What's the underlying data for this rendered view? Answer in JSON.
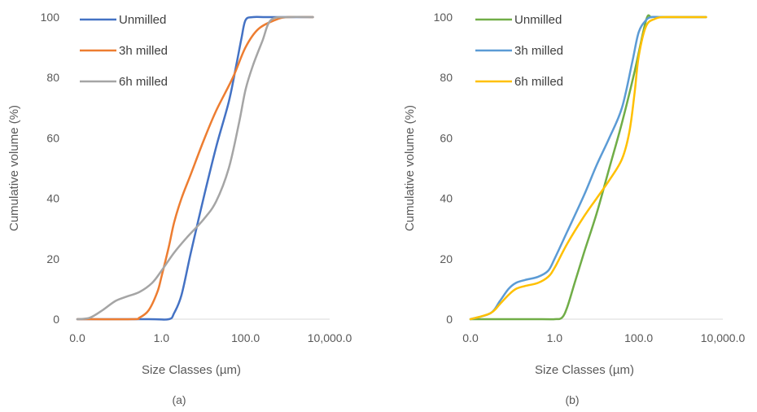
{
  "chart_data": [
    {
      "type": "line",
      "panel_label": "(a)",
      "xlabel": "Size Classes (µm)",
      "ylabel": "Cumulative volume (%)",
      "xscale": "log",
      "xlim": [
        0.01,
        10000
      ],
      "ylim": [
        0,
        100
      ],
      "xticks": [
        {
          "value": 0.01,
          "label": "0.0"
        },
        {
          "value": 1,
          "label": "1.0"
        },
        {
          "value": 100,
          "label": "100.0"
        },
        {
          "value": 10000,
          "label": "10,000.0"
        }
      ],
      "yticks": [
        0,
        20,
        40,
        60,
        80,
        100
      ],
      "grid": false,
      "legend": "top-left",
      "series": [
        {
          "name": "Unmilled",
          "color": "#4472C4",
          "x": [
            0.01,
            0.5,
            1.5,
            2,
            3,
            5,
            10,
            20,
            40,
            60,
            80,
            100,
            150,
            300,
            1000,
            4000
          ],
          "y": [
            0,
            0,
            0,
            2,
            8,
            22,
            40,
            57,
            72,
            84,
            93,
            99,
            100,
            100,
            100,
            100
          ]
        },
        {
          "name": "3h milled",
          "color": "#ED7D31",
          "x": [
            0.01,
            0.2,
            0.3,
            0.5,
            0.8,
            1,
            1.5,
            2,
            3,
            5,
            10,
            20,
            50,
            100,
            200,
            500,
            1000,
            4000
          ],
          "y": [
            0,
            0,
            0.5,
            3,
            9,
            14,
            24,
            32,
            40,
            48,
            59,
            69,
            80,
            90,
            96,
            99,
            100,
            100
          ]
        },
        {
          "name": "6h milled",
          "color": "#A5A5A5",
          "x": [
            0.01,
            0.02,
            0.04,
            0.08,
            0.15,
            0.3,
            0.6,
            1,
            2,
            4,
            10,
            20,
            40,
            70,
            100,
            150,
            250,
            400,
            1000,
            4000
          ],
          "y": [
            0,
            0.5,
            3,
            6,
            7.5,
            9,
            12,
            16,
            22,
            27,
            33,
            39,
            50,
            65,
            76,
            84,
            92,
            99,
            100,
            100
          ]
        }
      ]
    },
    {
      "type": "line",
      "panel_label": "(b)",
      "xlabel": "Size Classes (µm)",
      "ylabel": "Cumulative volume (%)",
      "xscale": "log",
      "xlim": [
        0.01,
        10000
      ],
      "ylim": [
        0,
        100
      ],
      "xticks": [
        {
          "value": 0.01,
          "label": "0.0"
        },
        {
          "value": 1,
          "label": "1.0"
        },
        {
          "value": 100,
          "label": "100.0"
        },
        {
          "value": 10000,
          "label": "10,000.0"
        }
      ],
      "yticks": [
        0,
        20,
        40,
        60,
        80,
        100
      ],
      "grid": false,
      "legend": "top-left",
      "series": [
        {
          "name": "Unmilled",
          "color": "#70AD47",
          "x": [
            0.01,
            0.5,
            1,
            1.5,
            2,
            3,
            5,
            10,
            20,
            40,
            80,
            150,
            200,
            300,
            1000,
            4000
          ],
          "y": [
            0,
            0,
            0,
            0.5,
            4,
            12,
            22,
            35,
            50,
            65,
            82,
            99,
            100,
            100,
            100,
            100
          ]
        },
        {
          "name": "3h milled",
          "color": "#5B9BD5",
          "x": [
            0.01,
            0.03,
            0.05,
            0.08,
            0.12,
            0.2,
            0.4,
            0.7,
            1,
            2,
            5,
            10,
            20,
            40,
            70,
            100,
            150,
            200,
            300,
            1000,
            4000
          ],
          "y": [
            0,
            2,
            6,
            10,
            12,
            13,
            14,
            16,
            20,
            29,
            41,
            51,
            60,
            70,
            85,
            95,
            99,
            100,
            100,
            100,
            100
          ]
        },
        {
          "name": "6h milled",
          "color": "#FFC000",
          "x": [
            0.01,
            0.03,
            0.05,
            0.08,
            0.12,
            0.2,
            0.4,
            0.7,
            1,
            2,
            5,
            10,
            20,
            40,
            60,
            80,
            100,
            150,
            250,
            400,
            1000,
            4000
          ],
          "y": [
            0,
            2,
            5,
            8,
            10,
            11,
            12,
            14,
            17,
            25,
            34,
            40,
            46,
            53,
            62,
            75,
            87,
            97,
            99.5,
            100,
            100,
            100
          ]
        }
      ]
    }
  ]
}
